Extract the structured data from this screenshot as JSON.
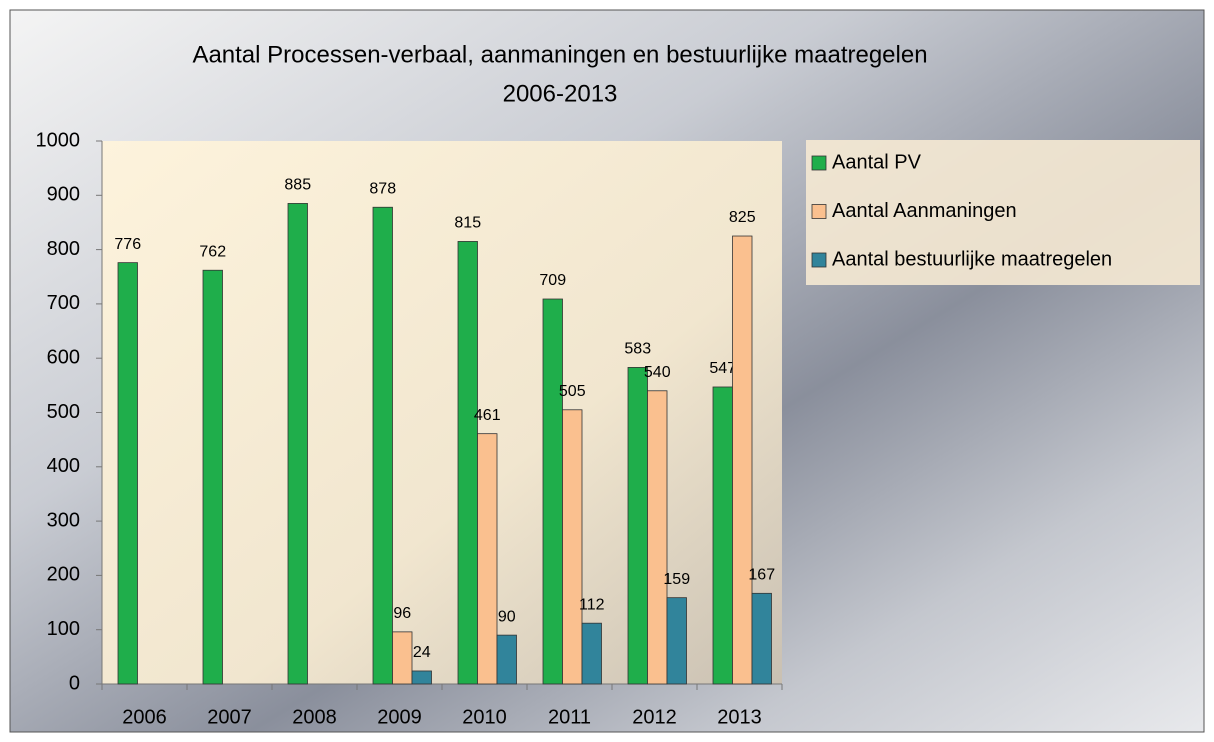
{
  "chart_data": {
    "type": "bar",
    "title": [
      "Aantal Processen-verbaal, aanmaningen en bestuurlijke maatregelen",
      "2006-2013"
    ],
    "categories": [
      "2006",
      "2007",
      "2008",
      "2009",
      "2010",
      "2011",
      "2012",
      "2013"
    ],
    "series": [
      {
        "name": "Aantal PV",
        "color": "#1fae4b",
        "values": [
          776,
          762,
          885,
          878,
          815,
          709,
          583,
          547
        ]
      },
      {
        "name": "Aantal Aanmaningen",
        "color": "#fac08f",
        "values": [
          null,
          null,
          null,
          96,
          461,
          505,
          540,
          825
        ]
      },
      {
        "name": "Aantal bestuurlijke maatregelen",
        "color": "#31849b",
        "values": [
          null,
          null,
          null,
          24,
          90,
          112,
          159,
          167
        ]
      }
    ],
    "ylim": [
      0,
      1000
    ],
    "yticks": [
      0,
      100,
      200,
      300,
      400,
      500,
      600,
      700,
      800,
      900,
      1000
    ],
    "grid": false,
    "legend": "right"
  }
}
